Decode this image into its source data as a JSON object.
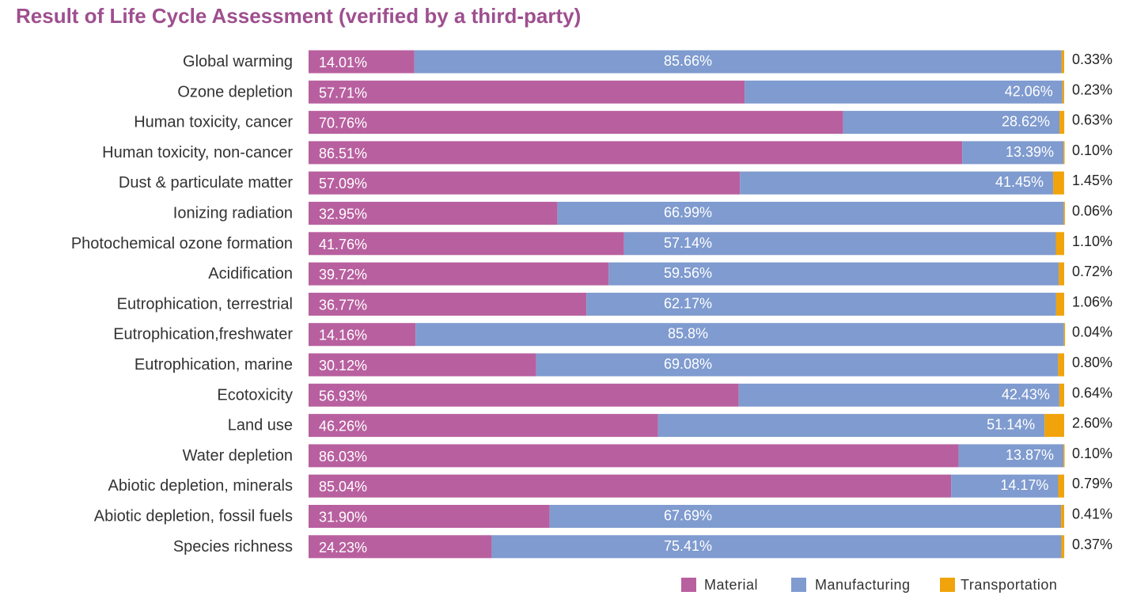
{
  "title": "Result of Life Cycle Assessment (verified by a third-party)",
  "colors": {
    "title": "#9e4f8f",
    "Material": "#b8609f",
    "Manufacturing": "#7f9bcf",
    "Transportation": "#f0a30a"
  },
  "chart_data": {
    "type": "bar",
    "orientation": "horizontal",
    "stacked": true,
    "percent_stacked": true,
    "title": "Result of Life Cycle Assessment (verified by a third-party)",
    "categories": [
      "Global warming",
      "Ozone depletion",
      "Human toxicity, cancer",
      "Human toxicity, non-cancer",
      "Dust & particulate matter",
      "Ionizing radiation",
      "Photochemical ozone formation",
      "Acidification",
      "Eutrophication, terrestrial",
      "Eutrophication,freshwater",
      "Eutrophication, marine",
      "Ecotoxicity",
      "Land use",
      "Water depletion",
      "Abiotic depletion, minerals",
      "Abiotic depletion, fossil fuels",
      "Species richness"
    ],
    "series": [
      {
        "name": "Material",
        "values": [
          14.01,
          57.71,
          70.76,
          86.51,
          57.09,
          32.95,
          41.76,
          39.72,
          36.77,
          14.16,
          30.12,
          56.93,
          46.26,
          86.03,
          85.04,
          31.9,
          24.23
        ],
        "labels": [
          "14.01%",
          "57.71%",
          "70.76%",
          "86.51%",
          "57.09%",
          "32.95%",
          "41.76%",
          "39.72%",
          "36.77%",
          "14.16%",
          "30.12%",
          "56.93%",
          "46.26%",
          "86.03%",
          "85.04%",
          "31.90%",
          "24.23%"
        ]
      },
      {
        "name": "Manufacturing",
        "values": [
          85.66,
          42.06,
          28.62,
          13.39,
          41.45,
          66.99,
          57.14,
          59.56,
          62.17,
          85.8,
          69.08,
          42.43,
          51.14,
          13.87,
          14.17,
          67.69,
          75.41
        ],
        "labels": [
          "85.66%",
          "42.06%",
          "28.62%",
          "13.39%",
          "41.45%",
          "66.99%",
          "57.14%",
          "59.56%",
          "62.17%",
          "85.8%",
          "69.08%",
          "42.43%",
          "51.14%",
          "13.87%",
          "14.17%",
          "67.69%",
          "75.41%"
        ]
      },
      {
        "name": "Transportation",
        "values": [
          0.33,
          0.23,
          0.63,
          0.1,
          1.45,
          0.06,
          1.1,
          0.72,
          1.06,
          0.04,
          0.8,
          0.64,
          2.6,
          0.1,
          0.79,
          0.41,
          0.37
        ],
        "labels": [
          "0.33%",
          "0.23%",
          "0.63%",
          "0.10%",
          "1.45%",
          "0.06%",
          "1.10%",
          "0.72%",
          "1.06%",
          "0.04%",
          "0.80%",
          "0.64%",
          "2.60%",
          "0.10%",
          "0.79%",
          "0.41%",
          "0.37%"
        ]
      }
    ],
    "xlim": [
      0,
      100
    ],
    "grid": false,
    "legend": "bottom-right"
  }
}
